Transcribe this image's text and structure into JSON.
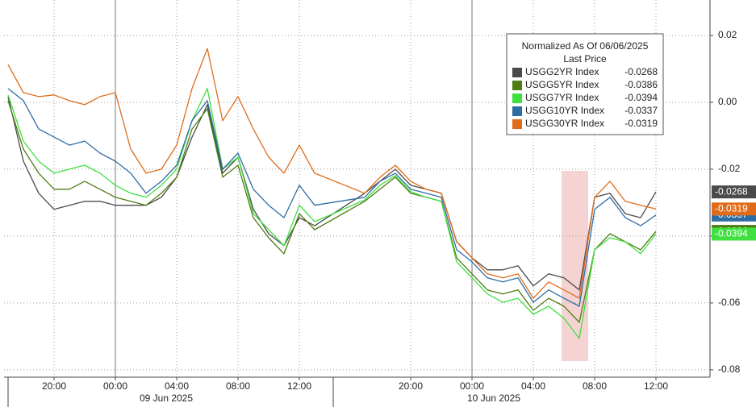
{
  "chart_data": {
    "type": "line",
    "legend_title": "Normalized As Of 06/06/2025",
    "legend_subtitle": "Last Price",
    "dates": [
      "09 Jun 2025",
      "10 Jun 2025"
    ],
    "categories": [
      null,
      null,
      null,
      "20:00",
      null,
      null,
      null,
      "00:00",
      null,
      null,
      null,
      "04:00",
      null,
      null,
      null,
      "08:00",
      null,
      null,
      null,
      "12:00",
      null,
      null,
      null,
      null,
      "20:00",
      null,
      null,
      null,
      "00:00",
      null,
      null,
      null,
      "04:00",
      null,
      null,
      null,
      "08:00",
      null,
      null,
      null,
      "12:00"
    ],
    "ylim": [
      -0.0822,
      0.0306
    ],
    "yticks": [
      0.02,
      {
        "value": 0,
        "label": "0.00"
      },
      -0.02,
      -0.04,
      -0.06,
      -0.08
    ],
    "grid": true,
    "legend_position": "upper right",
    "series": [
      {
        "name": "USGG2YR Index",
        "color": "#4a4a4a",
        "last_price": -0.0268,
        "values": [
          0.0017,
          -0.0176,
          -0.0272,
          -0.032,
          -0.0308,
          -0.0296,
          -0.0296,
          -0.0308,
          -0.0308,
          -0.0308,
          -0.0284,
          -0.0224,
          -0.0104,
          -0.0007,
          -0.0212,
          -0.0164,
          -0.032,
          -0.0393,
          -0.0429,
          -0.0345,
          -0.0369,
          -0.0272,
          -0.0236,
          -0.02,
          -0.0248,
          -0.026,
          -0.0272,
          -0.0417,
          -0.0465,
          -0.0501,
          -0.0501,
          -0.0489,
          -0.0549,
          -0.0513,
          -0.0525,
          -0.0561,
          -0.0284,
          -0.0272,
          -0.0333,
          -0.0345,
          -0.0268
        ]
      },
      {
        "name": "USGG5YR Index",
        "color": "#4e7d12",
        "last_price": -0.0386,
        "values": [
          0.0005,
          -0.014,
          -0.0212,
          -0.026,
          -0.026,
          -0.0236,
          -0.026,
          -0.0284,
          -0.0296,
          -0.0308,
          -0.0272,
          -0.0224,
          -0.008,
          -0.0019,
          -0.0224,
          -0.0188,
          -0.0345,
          -0.0405,
          -0.0453,
          -0.0333,
          -0.0381,
          -0.0296,
          -0.026,
          -0.0224,
          -0.0272,
          -0.0284,
          -0.0296,
          -0.0465,
          -0.0513,
          -0.0561,
          -0.0573,
          -0.0561,
          -0.0622,
          -0.0586,
          -0.061,
          -0.0658,
          -0.0441,
          -0.0393,
          -0.0417,
          -0.0441,
          -0.0386
        ]
      },
      {
        "name": "USGG7YR Index",
        "color": "#3fe03f",
        "last_price": -0.0394,
        "values": [
          0.0022,
          -0.0116,
          -0.0176,
          -0.0212,
          -0.02,
          -0.0188,
          -0.0212,
          -0.0248,
          -0.0272,
          -0.0284,
          -0.0248,
          -0.02,
          -0.0055,
          0.0041,
          -0.02,
          -0.0164,
          -0.0333,
          -0.0381,
          -0.0429,
          -0.0308,
          -0.0357,
          -0.0292,
          -0.0248,
          -0.0219,
          -0.0267,
          -0.0284,
          -0.0296,
          -0.0477,
          -0.0525,
          -0.0573,
          -0.0598,
          -0.0586,
          -0.0634,
          -0.061,
          -0.0646,
          -0.0706,
          -0.0441,
          -0.0405,
          -0.0417,
          -0.0453,
          -0.0394
        ]
      },
      {
        "name": "USGG10YR Index",
        "color": "#2e6da4",
        "last_price": -0.0337,
        "values": [
          0.0041,
          0.0005,
          -0.008,
          -0.0104,
          -0.0128,
          -0.0116,
          -0.0152,
          -0.0176,
          -0.0212,
          -0.0272,
          -0.0236,
          -0.0188,
          -0.0055,
          0.0005,
          -0.02,
          -0.0152,
          -0.026,
          -0.0308,
          -0.0345,
          -0.0248,
          -0.0308,
          -0.0284,
          -0.0236,
          -0.0212,
          -0.026,
          -0.0272,
          -0.0284,
          -0.0441,
          -0.0477,
          -0.0525,
          -0.0537,
          -0.0525,
          -0.0598,
          -0.0561,
          -0.0586,
          -0.061,
          -0.032,
          -0.0284,
          -0.0345,
          -0.0369,
          -0.0337
        ]
      },
      {
        "name": "USGG30YR Index",
        "color": "#e06c1a",
        "last_price": -0.0319,
        "values": [
          0.0113,
          0.0029,
          0.0017,
          0.0022,
          0.0005,
          -0.0007,
          0.0017,
          0.0029,
          -0.014,
          -0.0212,
          -0.02,
          -0.0128,
          0.0041,
          0.0161,
          -0.0055,
          0.0017,
          -0.008,
          -0.0164,
          -0.0212,
          -0.0128,
          -0.0212,
          -0.0272,
          -0.0224,
          -0.0188,
          -0.0236,
          -0.026,
          -0.0272,
          -0.0417,
          -0.0465,
          -0.0513,
          -0.0525,
          -0.0513,
          -0.0586,
          -0.0537,
          -0.0561,
          -0.0586,
          -0.0284,
          -0.0236,
          -0.0296,
          -0.0308,
          -0.0319
        ]
      }
    ]
  }
}
